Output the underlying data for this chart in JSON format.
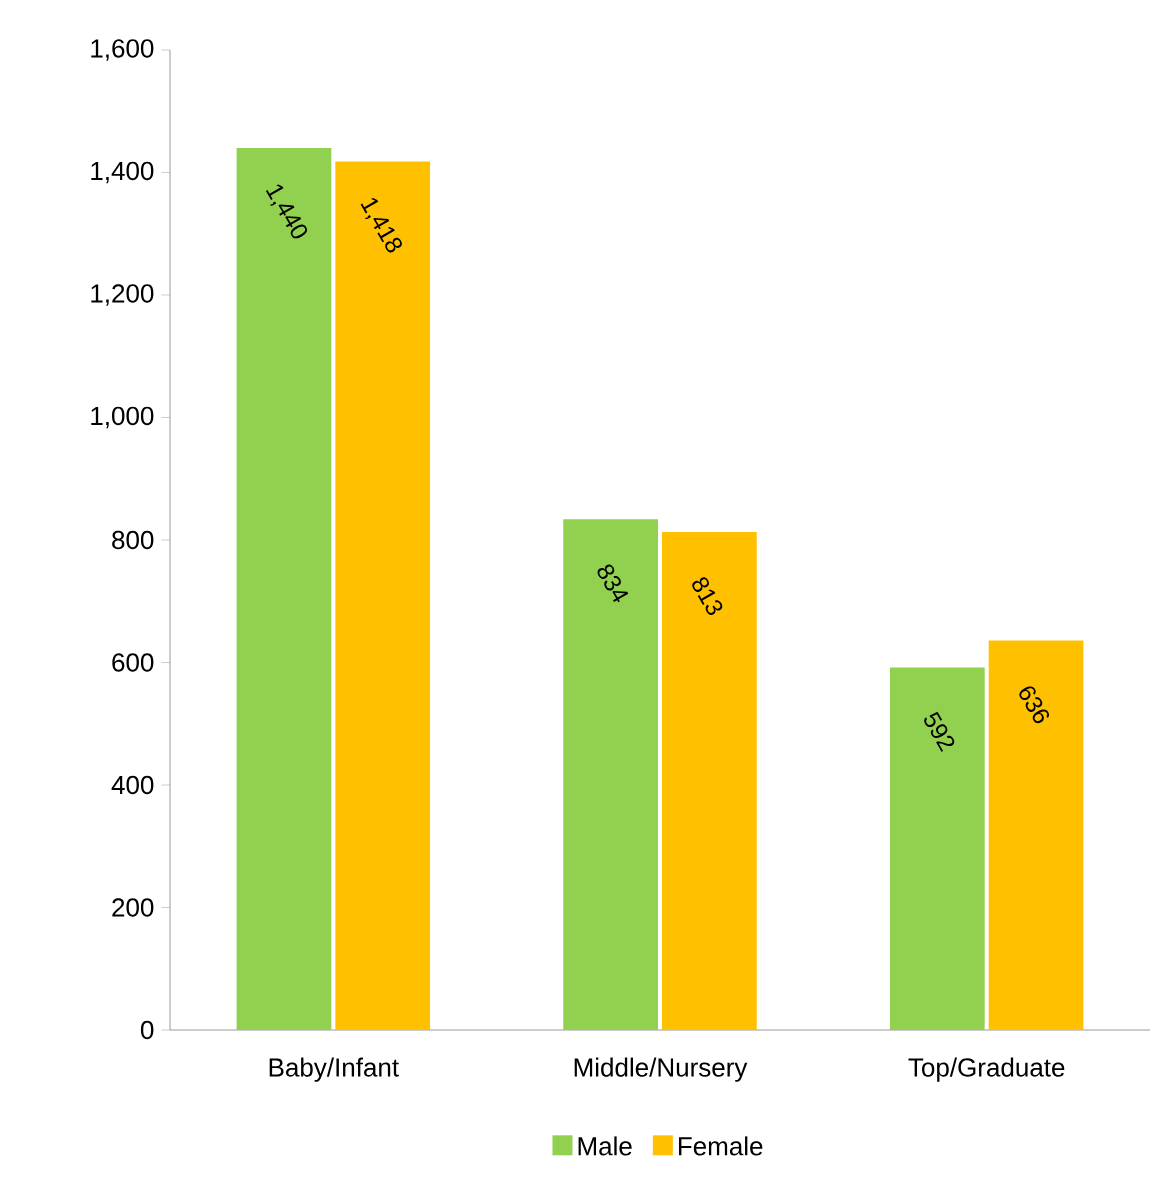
{
  "chart_data": {
    "type": "bar",
    "categories": [
      "Baby/Infant",
      "Middle/Nursery",
      "Top/Graduate"
    ],
    "series": [
      {
        "name": "Male",
        "color": "#92d050",
        "values": [
          1440,
          834,
          592
        ],
        "value_labels": [
          "1,440",
          "834",
          "592"
        ]
      },
      {
        "name": "Female",
        "color": "#ffc000",
        "values": [
          1418,
          813,
          636
        ],
        "value_labels": [
          "1,418",
          "813",
          "636"
        ]
      }
    ],
    "ylim": [
      0,
      1600
    ],
    "yticks": [
      {
        "value": 0,
        "label": "0"
      },
      {
        "value": 200,
        "label": "200"
      },
      {
        "value": 400,
        "label": "400"
      },
      {
        "value": 600,
        "label": "600"
      },
      {
        "value": 800,
        "label": "800"
      },
      {
        "value": 1000,
        "label": "1,000"
      },
      {
        "value": 1200,
        "label": "1,200"
      },
      {
        "value": 1400,
        "label": "1,400"
      },
      {
        "value": 1600,
        "label": "1,600"
      }
    ],
    "legend": "bottom",
    "grid": false
  }
}
